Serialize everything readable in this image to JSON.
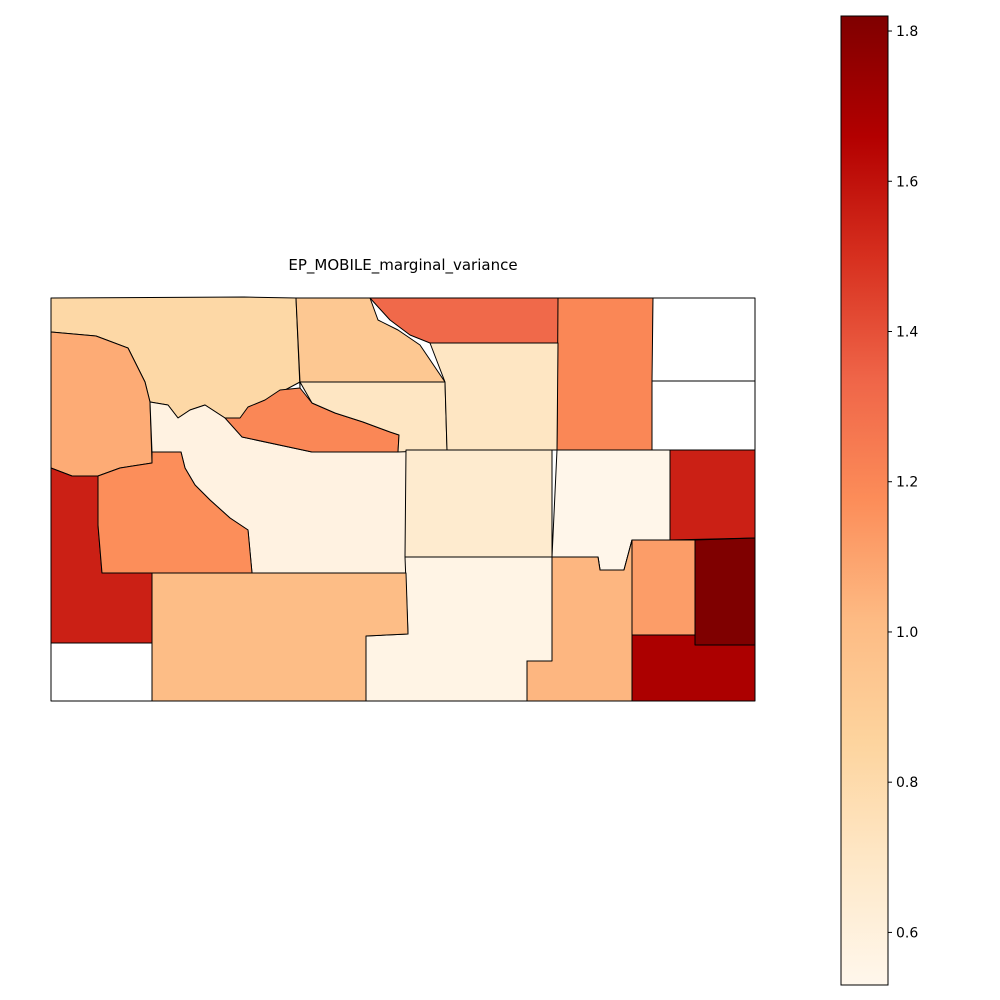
{
  "chart_data": {
    "type": "choropleth",
    "title": "EP_MOBILE_marginal_variance",
    "colormap": "OrRd",
    "colorbar": {
      "vmin": 0.53,
      "vmax": 1.82,
      "ticks": [
        0.6,
        0.8,
        1.0,
        1.2,
        1.4,
        1.6,
        1.8
      ],
      "tick_labels": [
        "0.6",
        "0.8",
        "1.0",
        "1.2",
        "1.4",
        "1.6",
        "1.8"
      ]
    },
    "regions": [
      {
        "value": 0.82
      },
      {
        "value": 0.93
      },
      {
        "value": 1.32
      },
      {
        "value": 1.2
      },
      {
        "value": null
      },
      {
        "value": 1.07
      },
      {
        "value": 0.58
      },
      {
        "value": 1.2
      },
      {
        "value": 0.71
      },
      {
        "value": 0.71
      },
      {
        "value": null
      },
      {
        "value": 1.55
      },
      {
        "value": 1.17
      },
      {
        "value": 0.54
      },
      {
        "value": 0.66
      },
      {
        "value": 0.56
      },
      {
        "value": 1.55
      },
      {
        "value": 1.12
      },
      {
        "value": 1.82
      },
      {
        "value": null
      },
      {
        "value": 1.0
      },
      {
        "value": 0.67
      },
      {
        "value": 1.03
      },
      {
        "value": 1.68
      }
    ],
    "grid": false,
    "legend": "colorbar-right"
  }
}
